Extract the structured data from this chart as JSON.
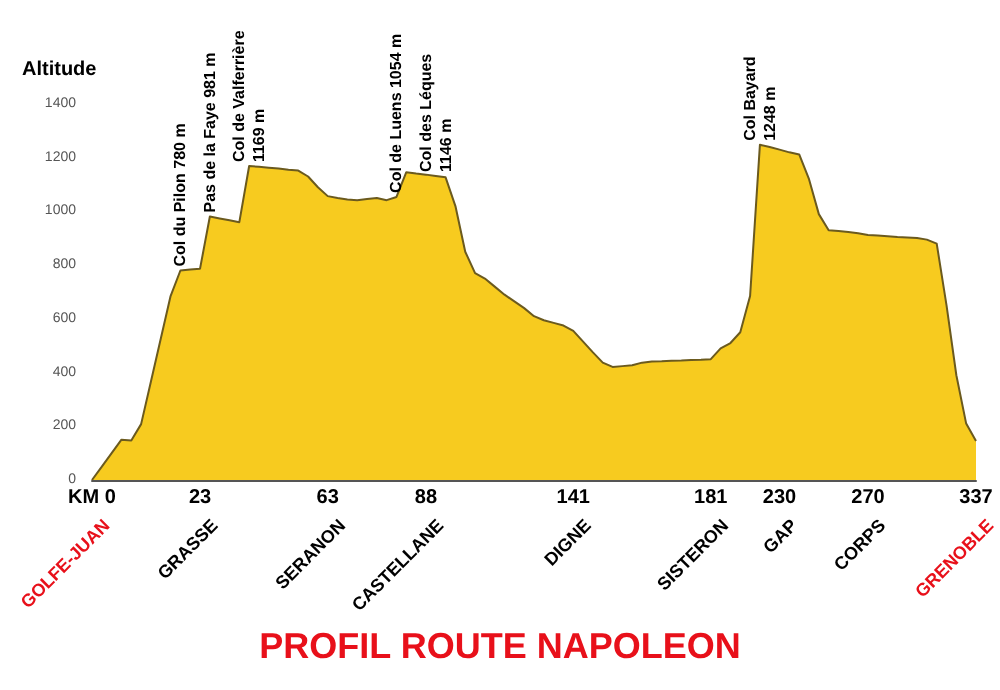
{
  "chart_data": {
    "type": "area",
    "title": "PROFIL ROUTE NAPOLEON",
    "ylabel": "Altitude",
    "color": "#f7cb1f",
    "categories": [
      "KM 0",
      null,
      null,
      null,
      null,
      null,
      null,
      null,
      null,
      null,
      null,
      "23",
      null,
      null,
      null,
      null,
      null,
      null,
      null,
      null,
      null,
      null,
      null,
      null,
      "63",
      null,
      null,
      null,
      null,
      null,
      null,
      null,
      null,
      null,
      "88",
      null,
      null,
      null,
      null,
      null,
      null,
      null,
      null,
      null,
      null,
      null,
      null,
      null,
      null,
      "141",
      null,
      null,
      null,
      null,
      null,
      null,
      null,
      null,
      null,
      null,
      null,
      null,
      null,
      "181",
      null,
      null,
      null,
      null,
      null,
      null,
      "230",
      null,
      null,
      null,
      null,
      null,
      null,
      null,
      null,
      "270",
      null,
      null,
      null,
      null,
      null,
      null,
      null,
      null,
      null,
      null,
      "337"
    ],
    "values": [
      0,
      50,
      100,
      150,
      147,
      208,
      367,
      526,
      685,
      780,
      784,
      787,
      981,
      974,
      967,
      960,
      1169,
      1166,
      1163,
      1160,
      1155,
      1152,
      1130,
      1090,
      1057,
      1050,
      1044,
      1042,
      1046,
      1050,
      1042,
      1054,
      1146,
      1141,
      1137,
      1132,
      1127,
      1020,
      850,
      770,
      750,
      720,
      690,
      665,
      640,
      610,
      595,
      585,
      575,
      555,
      515,
      475,
      437,
      421,
      424,
      427,
      437,
      441,
      442,
      444,
      445,
      447,
      448,
      450,
      490,
      510,
      550,
      685,
      1248,
      1240,
      1230,
      1220,
      1212,
      1120,
      990,
      930,
      927,
      923,
      919,
      912,
      910,
      908,
      905,
      903,
      901,
      895,
      880,
      650,
      390,
      210,
      145
    ],
    "value_labels": [
      null,
      null,
      null,
      null,
      null,
      null,
      null,
      null,
      null,
      "Col du Pilon 780 m",
      null,
      null,
      "Pas de la Faye 981 m",
      null,
      null,
      null,
      "Col de Valferrière\n1169 m",
      null,
      null,
      null,
      null,
      null,
      null,
      null,
      null,
      null,
      null,
      null,
      null,
      null,
      null,
      "Col de Luens 1054 m",
      null,
      null,
      null,
      "Col des Léques\n1146 m",
      null,
      null,
      null,
      null,
      null,
      null,
      null,
      null,
      null,
      null,
      null,
      null,
      null,
      null,
      null,
      null,
      null,
      null,
      null,
      null,
      null,
      null,
      null,
      null,
      null,
      null,
      null,
      null,
      null,
      null,
      null,
      null,
      "Col Bayard\n1248 m",
      null,
      null,
      null,
      null,
      null,
      null,
      null,
      null,
      null,
      null,
      null,
      null,
      null,
      null,
      null,
      null,
      null,
      null,
      null,
      null,
      null,
      null
    ],
    "annotations": [
      "GOLFE-JUAN",
      "GRASSE",
      "SERANON",
      "CASTELLANE",
      "DIGNE",
      "SISTERON",
      "GAP",
      "CORPS",
      "GRENOBLE"
    ],
    "ylim": [
      0,
      1400
    ],
    "yticks": [
      0,
      200,
      400,
      600,
      800,
      1000,
      1200,
      1400
    ],
    "grid": false
  }
}
